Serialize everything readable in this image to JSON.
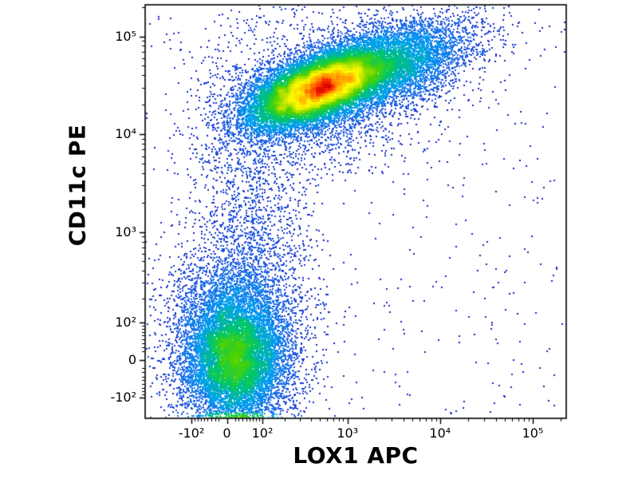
{
  "figure": {
    "background": "#ffffff"
  },
  "chart_data": {
    "type": "scatter",
    "subtype": "flow_cytometry_pseudocolor_density",
    "title": "",
    "xlabel": "LOX1 APC",
    "ylabel": "CD11c PE",
    "grid": false,
    "legend": false,
    "scale": {
      "kind": "biexponential_asinh",
      "linear_width": 100
    },
    "xlim": [
      -375,
      230000
    ],
    "ylim": [
      -185,
      210000
    ],
    "x_ticks": [
      {
        "v": -100,
        "label": "-10²"
      },
      {
        "v": 0,
        "label": "0"
      },
      {
        "v": 100,
        "label": "10²"
      },
      {
        "v": 1000,
        "label": "10³"
      },
      {
        "v": 10000,
        "label": "10⁴"
      },
      {
        "v": 100000,
        "label": "10⁵"
      }
    ],
    "y_ticks": [
      {
        "v": 100000,
        "label": "10⁵"
      },
      {
        "v": 10000,
        "label": "10⁴"
      },
      {
        "v": 1000,
        "label": "10³"
      },
      {
        "v": 100,
        "label": "10²"
      },
      {
        "v": 0,
        "label": "0"
      },
      {
        "v": -100,
        "label": "-10²"
      }
    ],
    "marker_px": 2,
    "density_grid": 150,
    "density_gamma": 0.62,
    "seed": 1234567,
    "colormap": [
      [
        0.0,
        "#1414be"
      ],
      [
        0.15,
        "#1e64e6"
      ],
      [
        0.3,
        "#00a0f0"
      ],
      [
        0.45,
        "#00c864"
      ],
      [
        0.58,
        "#50d200"
      ],
      [
        0.68,
        "#c8e600"
      ],
      [
        0.76,
        "#ffff00"
      ],
      [
        0.86,
        "#ff9b00"
      ],
      [
        0.93,
        "#ff3c00"
      ],
      [
        1.0,
        "#d70000"
      ]
    ],
    "populations": [
      {
        "name": "cd11c_pos_lox1_pos_core",
        "n": 16000,
        "center": [
          500,
          30000
        ],
        "spread_decades": [
          0.4,
          0.155
        ],
        "tilt_deg": 20
      },
      {
        "name": "cd11c_pos_lox1_pos_tail",
        "n": 4500,
        "center": [
          3500,
          55000
        ],
        "spread_decades": [
          0.45,
          0.2
        ],
        "tilt_deg": 18
      },
      {
        "name": "cd11c_pos_halo",
        "n": 2600,
        "center": [
          550,
          26000
        ],
        "spread_decades": [
          0.6,
          0.38
        ],
        "tilt_deg": 15
      },
      {
        "name": "cd11c_neg_lox1_neg_core",
        "n": 6500,
        "center": [
          18,
          0
        ],
        "spread_decades": [
          0.24,
          0.3
        ],
        "tilt_deg": 0
      },
      {
        "name": "cd11c_neg_halo",
        "n": 6500,
        "center": [
          25,
          40
        ],
        "spread_decades": [
          0.36,
          0.52
        ],
        "tilt_deg": 0
      },
      {
        "name": "bridge_intermediate",
        "n": 1300,
        "center": [
          70,
          2500
        ],
        "spread_decades": [
          0.3,
          0.8
        ],
        "tilt_deg": 0
      },
      {
        "name": "background_scatter",
        "n": 500,
        "type": "uniform"
      }
    ]
  }
}
